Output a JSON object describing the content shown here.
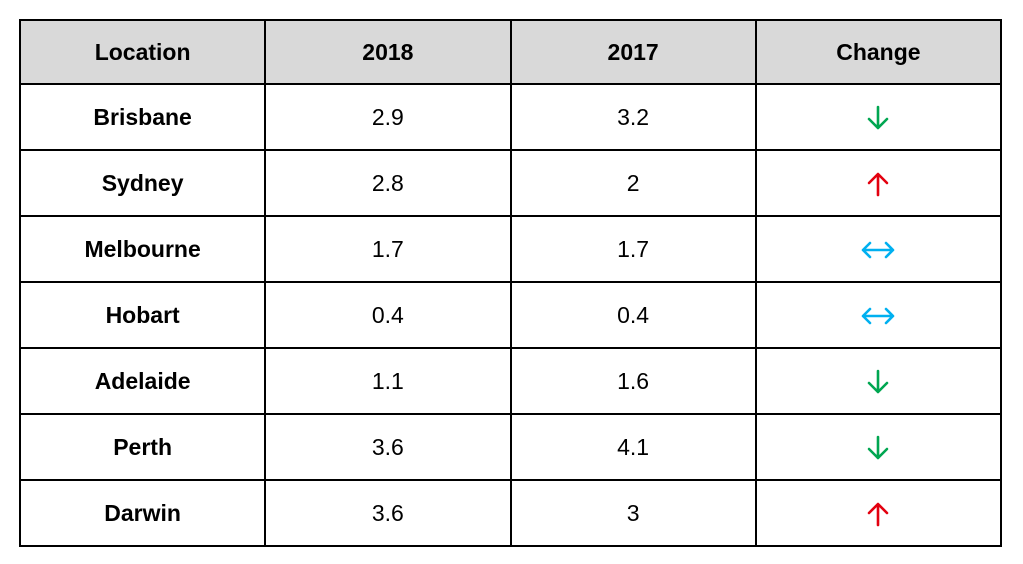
{
  "chart_data": {
    "type": "table",
    "columns": [
      "Location",
      "2018",
      "2017",
      "Change"
    ],
    "rows": [
      {
        "location": "Brisbane",
        "y2018": "2.9",
        "y2017": "3.2",
        "change": "down"
      },
      {
        "location": "Sydney",
        "y2018": "2.8",
        "y2017": "2",
        "change": "up"
      },
      {
        "location": "Melbourne",
        "y2018": "1.7",
        "y2017": "1.7",
        "change": "same"
      },
      {
        "location": "Hobart",
        "y2018": "0.4",
        "y2017": "0.4",
        "change": "same"
      },
      {
        "location": "Adelaide",
        "y2018": "1.1",
        "y2017": "1.6",
        "change": "down"
      },
      {
        "location": "Perth",
        "y2018": "3.6",
        "y2017": "4.1",
        "change": "down"
      },
      {
        "location": "Darwin",
        "y2018": "3.6",
        "y2017": "3",
        "change": "up"
      }
    ]
  },
  "icons": {
    "down": {
      "name": "down-arrow-icon",
      "color": "#00a651"
    },
    "up": {
      "name": "up-arrow-icon",
      "color": "#e3000f"
    },
    "same": {
      "name": "left-right-arrow-icon",
      "color": "#00b0f0"
    }
  },
  "colors": {
    "header_bg": "#d9d9d9",
    "border": "#000000"
  }
}
